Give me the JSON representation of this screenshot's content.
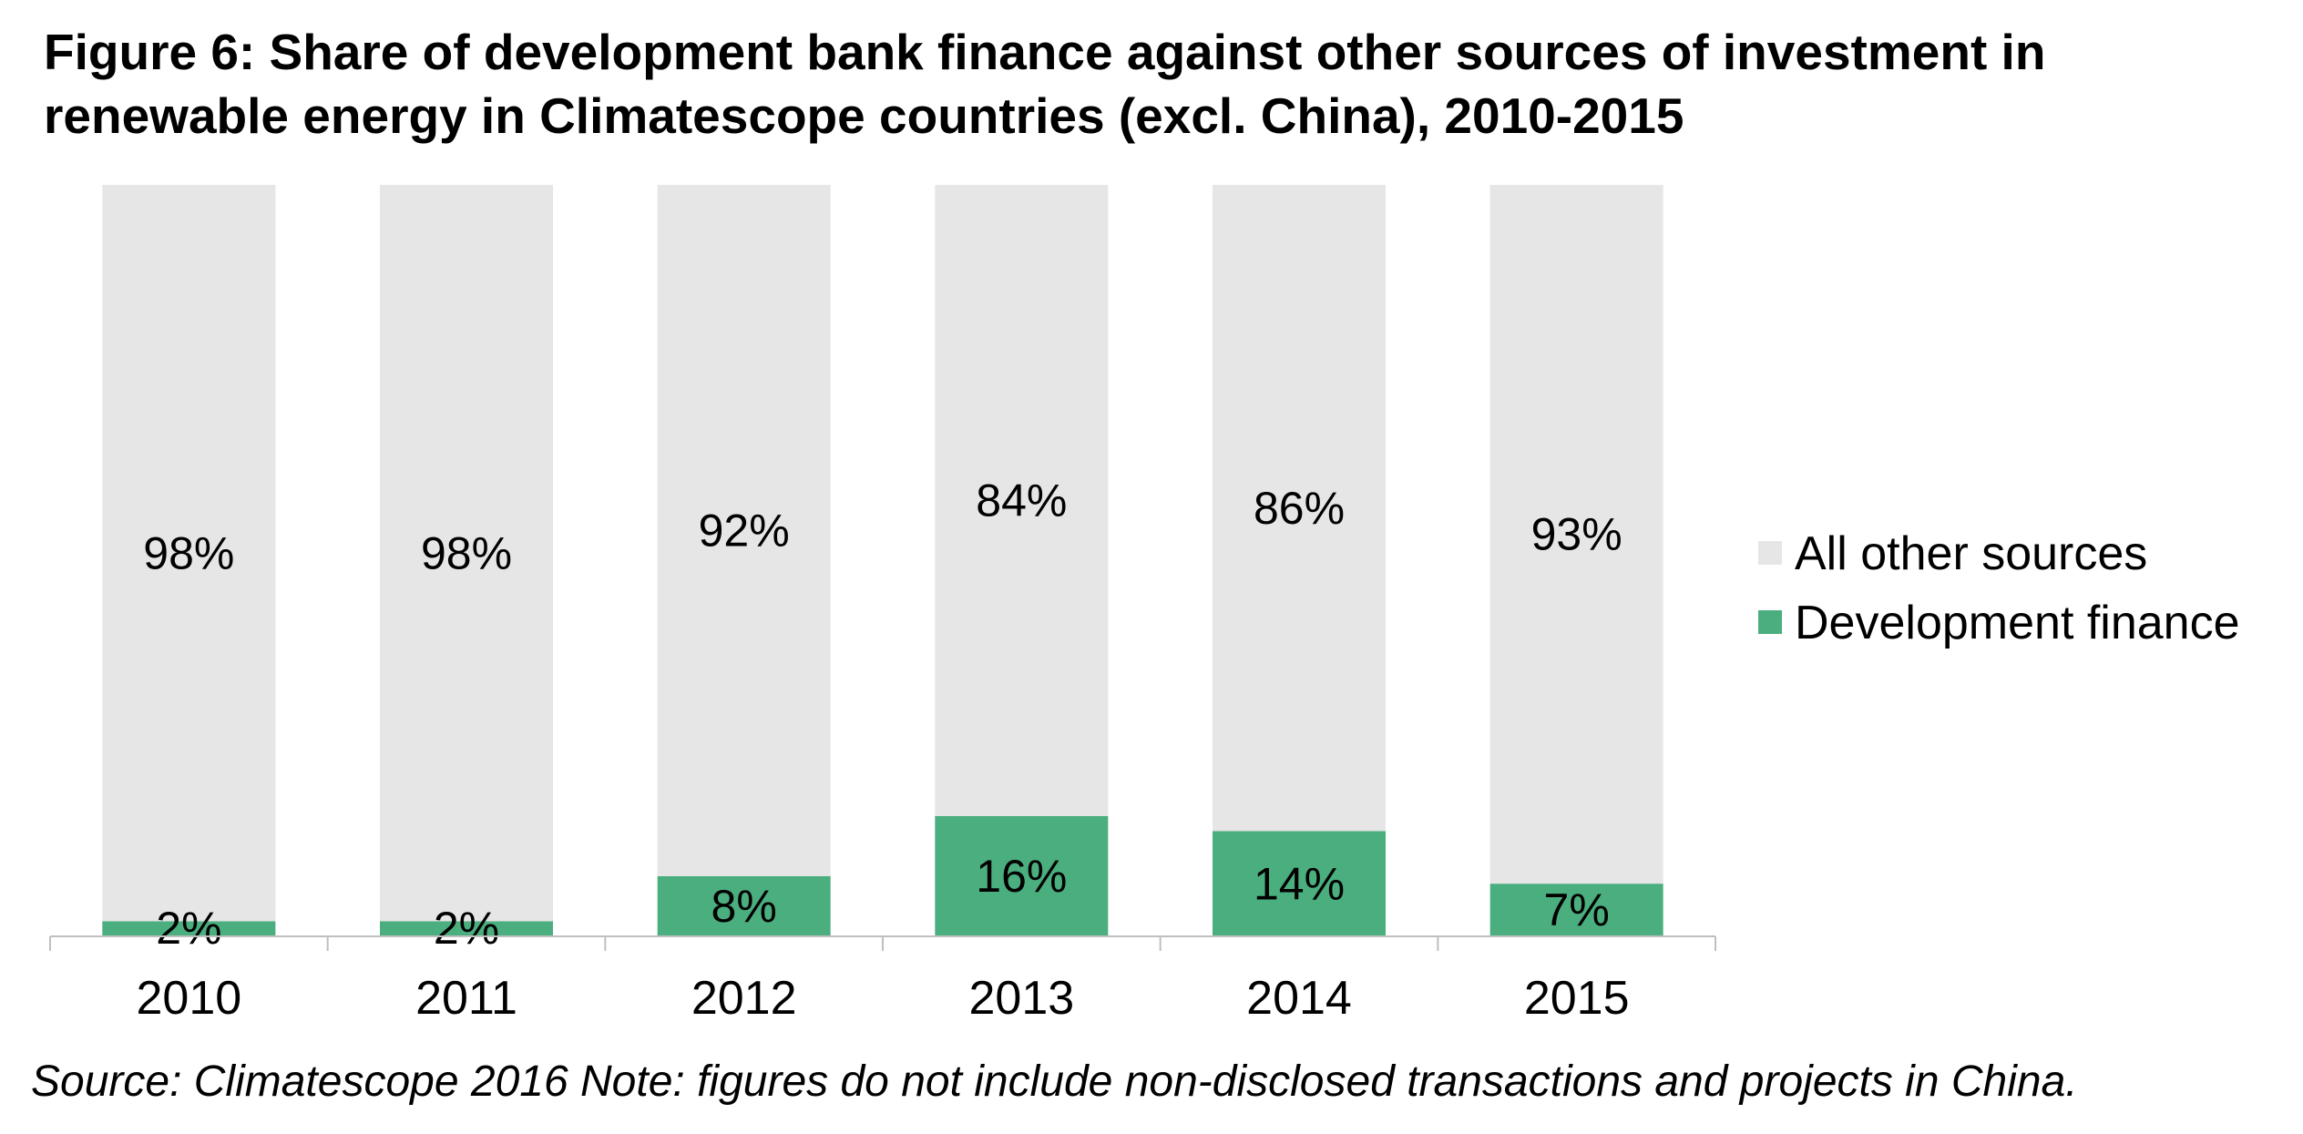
{
  "chart_data": {
    "type": "bar",
    "stacked": true,
    "percent_stacked": true,
    "title_lines": [
      "Figure 6: Share of development bank finance against other sources of investment in",
      "renewable energy in Climatescope countries (excl. China), 2010-2015"
    ],
    "categories": [
      "2010",
      "2011",
      "2012",
      "2013",
      "2014",
      "2015"
    ],
    "series": [
      {
        "name": "Development finance",
        "color": "#4BAE7F",
        "values": [
          2,
          2,
          8,
          16,
          14,
          7
        ],
        "labels": [
          "2%",
          "2%",
          "8%",
          "16%",
          "14%",
          "7%"
        ]
      },
      {
        "name": "All other sources",
        "color": "#E6E6E6",
        "values": [
          98,
          98,
          92,
          84,
          86,
          93
        ],
        "labels": [
          "98%",
          "98%",
          "92%",
          "84%",
          "86%",
          "93%"
        ]
      }
    ],
    "legend_order": [
      "All other sources",
      "Development finance"
    ],
    "legend_position": "right",
    "ylim": [
      0,
      100
    ],
    "y_axis_visible": false,
    "grid": false,
    "xlabel": "",
    "ylabel": ""
  },
  "source_note": "Source: Climatescope 2016 Note: figures do not include non-disclosed transactions and projects in China."
}
